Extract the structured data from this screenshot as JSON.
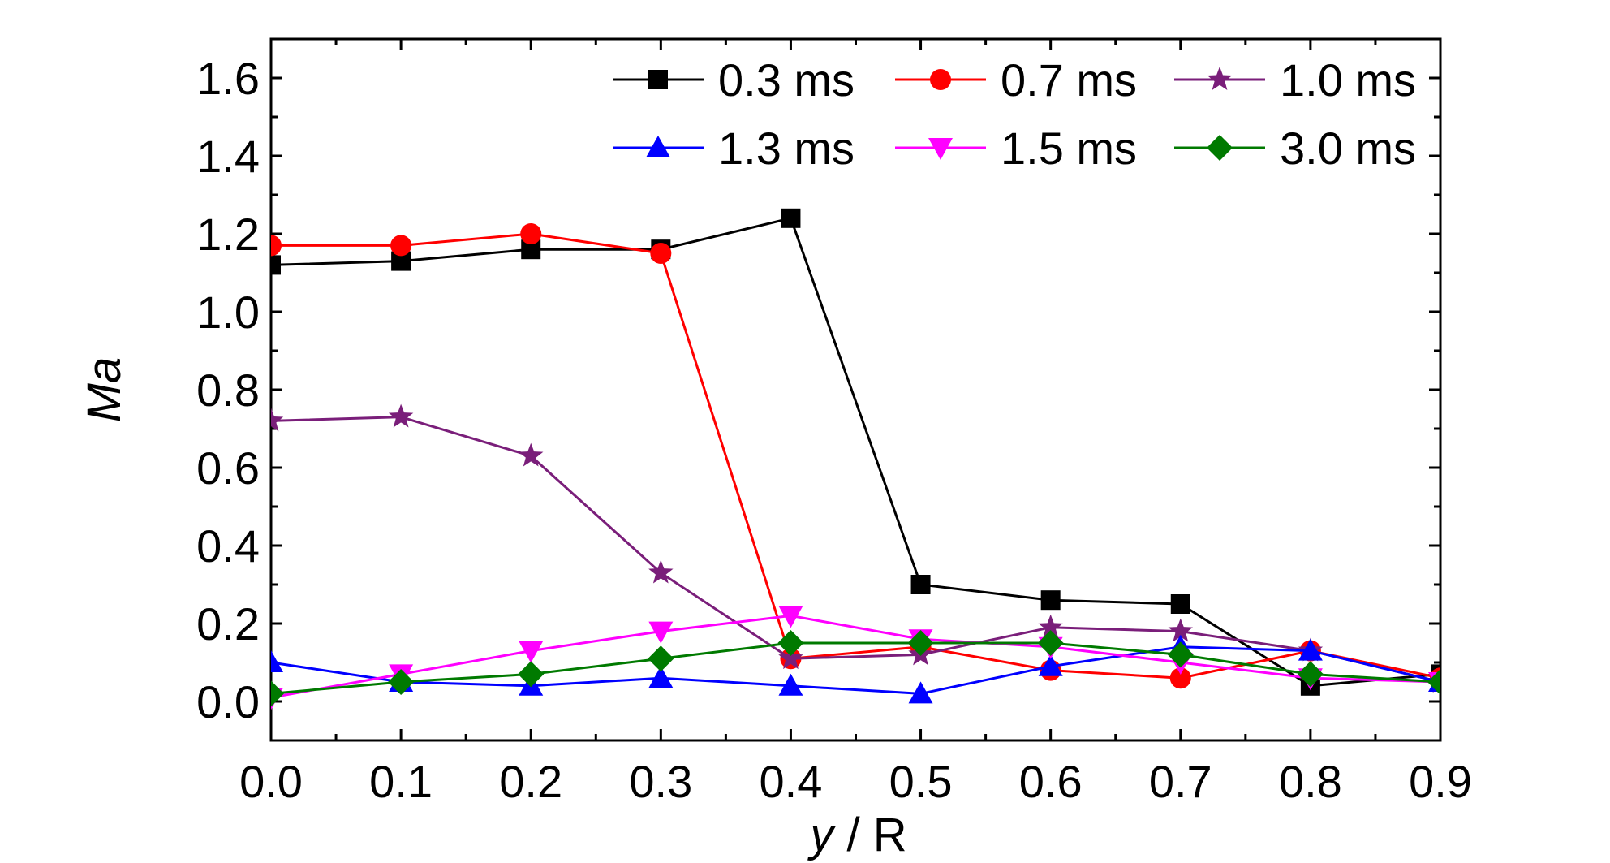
{
  "chart_data": {
    "type": "line",
    "title": "",
    "xlabel_italic": "y",
    "xlabel_rest": " / R",
    "ylabel": "Ma",
    "xlim": [
      0.0,
      0.9
    ],
    "ylim": [
      -0.1,
      1.7
    ],
    "xticks": [
      "0.0",
      "0.1",
      "0.2",
      "0.3",
      "0.4",
      "0.5",
      "0.6",
      "0.7",
      "0.8",
      "0.9"
    ],
    "yticks": [
      "0.0",
      "0.2",
      "0.4",
      "0.6",
      "0.8",
      "1.0",
      "1.2",
      "1.4",
      "1.6"
    ],
    "x": [
      0.0,
      0.1,
      0.2,
      0.3,
      0.4,
      0.5,
      0.6,
      0.7,
      0.8,
      0.9
    ],
    "grid": false,
    "legend_position": "top-right",
    "series": [
      {
        "name": "0.3 ms",
        "color": "#000000",
        "marker": "square",
        "values": [
          1.12,
          1.13,
          1.16,
          1.16,
          1.24,
          0.3,
          0.26,
          0.25,
          0.04,
          0.07
        ]
      },
      {
        "name": "0.7 ms",
        "color": "#ff0000",
        "marker": "circle",
        "values": [
          1.17,
          1.17,
          1.2,
          1.15,
          0.11,
          0.14,
          0.08,
          0.06,
          0.13,
          0.06
        ]
      },
      {
        "name": "1.0 ms",
        "color": "#7a1e7a",
        "marker": "star",
        "values": [
          0.72,
          0.73,
          0.63,
          0.33,
          0.11,
          0.12,
          0.19,
          0.18,
          0.13,
          0.05
        ]
      },
      {
        "name": "1.3 ms",
        "color": "#0000ff",
        "marker": "triangle-up",
        "values": [
          0.1,
          0.05,
          0.04,
          0.06,
          0.04,
          0.02,
          0.09,
          0.14,
          0.13,
          0.05
        ]
      },
      {
        "name": "1.5 ms",
        "color": "#ff00ff",
        "marker": "triangle-down",
        "values": [
          0.01,
          0.07,
          0.13,
          0.18,
          0.22,
          0.16,
          0.14,
          0.1,
          0.06,
          0.05
        ]
      },
      {
        "name": "3.0 ms",
        "color": "#007a00",
        "marker": "diamond",
        "values": [
          0.02,
          0.05,
          0.07,
          0.11,
          0.15,
          0.15,
          0.15,
          0.12,
          0.07,
          0.05
        ]
      }
    ]
  }
}
